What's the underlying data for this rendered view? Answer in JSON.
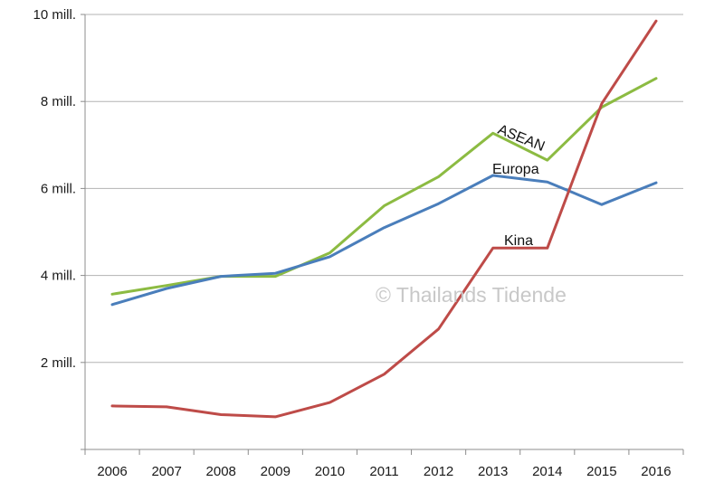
{
  "chart_data": {
    "type": "line",
    "categories": [
      "2006",
      "2007",
      "2008",
      "2009",
      "2010",
      "2011",
      "2012",
      "2013",
      "2014",
      "2015",
      "2016"
    ],
    "y_tick_values": [
      2,
      4,
      6,
      8,
      10
    ],
    "y_tick_labels": [
      "2 mill.",
      "4 mill.",
      "6 mill.",
      "8 mill.",
      "10 mill."
    ],
    "ylim": [
      0,
      10
    ],
    "unit": "mill.",
    "grid": true,
    "series": [
      {
        "name": "ASEAN",
        "color": "#8cbb42",
        "values": [
          3.57,
          3.77,
          3.98,
          3.98,
          4.52,
          5.6,
          6.27,
          7.27,
          6.65,
          7.87,
          8.53
        ]
      },
      {
        "name": "Europa",
        "color": "#4a7ebb",
        "values": [
          3.33,
          3.7,
          3.98,
          4.05,
          4.43,
          5.1,
          5.65,
          6.3,
          6.15,
          5.63,
          6.13
        ]
      },
      {
        "name": "Kina",
        "color": "#be4b48",
        "values": [
          1.0,
          0.98,
          0.8,
          0.75,
          1.08,
          1.73,
          2.77,
          4.63,
          4.63,
          7.95,
          9.85
        ]
      }
    ]
  },
  "watermark": "© Thailands Tidende"
}
